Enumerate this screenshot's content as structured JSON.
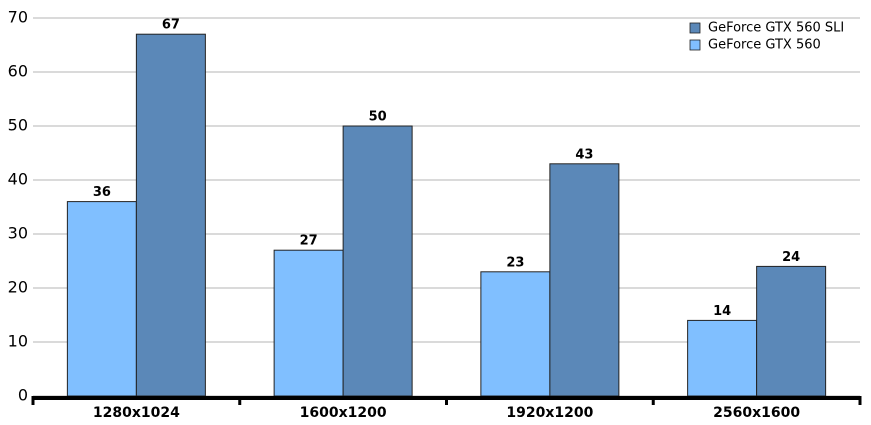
{
  "chart_data": {
    "type": "bar",
    "categories": [
      "1280x1024",
      "1600x1200",
      "1920x1200",
      "2560x1600"
    ],
    "series": [
      {
        "name": "GeForce GTX 560",
        "color": "#80bfff",
        "values": [
          36,
          27,
          23,
          14
        ]
      },
      {
        "name": "GeForce GTX 560 SLI",
        "color": "#5b88b8",
        "values": [
          67,
          50,
          43,
          24
        ]
      }
    ],
    "ylim": [
      0,
      70
    ],
    "yticks": [
      0,
      10,
      20,
      30,
      40,
      50,
      60,
      70
    ],
    "grid": true,
    "legend": "top-right"
  }
}
